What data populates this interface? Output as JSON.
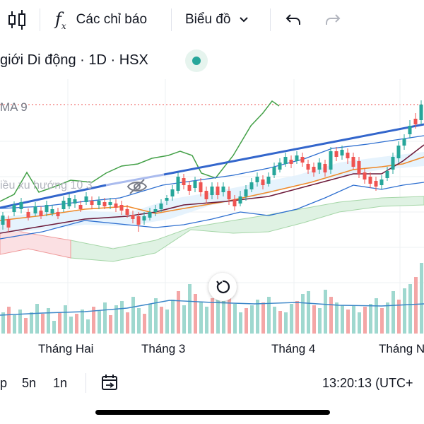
{
  "toolbar": {
    "indicators_label": "Các chỉ báo",
    "chart_type_label": "Biểu đồ"
  },
  "symbol": {
    "title": "giới Di động · 1D · HSX"
  },
  "chart": {
    "ma_label": "MA 9",
    "indicator_label": "iều xu hướng 10 3"
  },
  "xaxis": {
    "labels": [
      "Tháng Hai",
      "Tháng 3",
      "Tháng 4",
      "Tháng N"
    ]
  },
  "bottom": {
    "range_p": "p",
    "range_5n": "5n",
    "range_1n": "1n",
    "time": "13:20:13 (UTC+"
  },
  "colors": {
    "up": "#26a69a",
    "down": "#ef5350",
    "ma": "#7cb342",
    "trend": "#3366cc"
  }
}
